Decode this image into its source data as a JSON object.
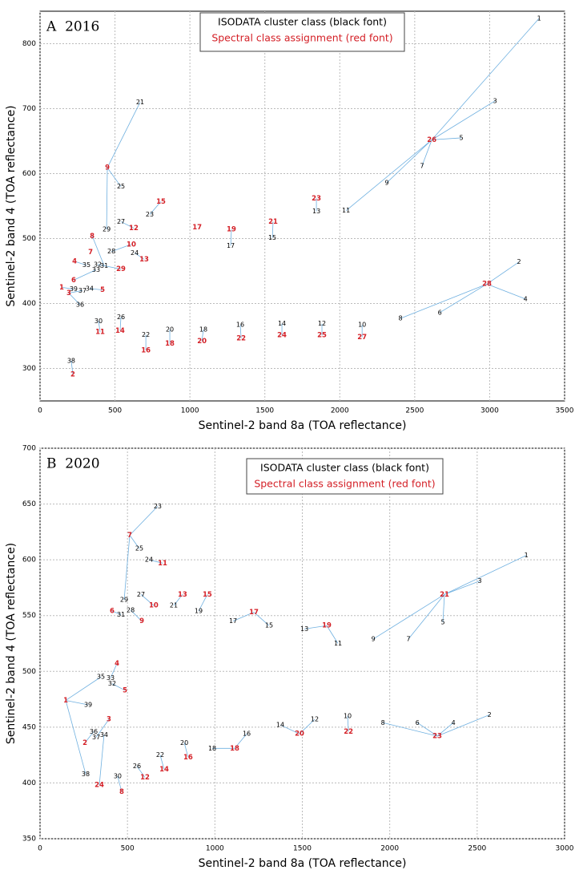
{
  "chart_data": [
    {
      "type": "scatter",
      "title": "A  2016",
      "x_label": "Sentinel-2 band 8a (TOA reflectance)",
      "y_label": "Sentinel-2 band 4 (TOA reflectance)",
      "xlim": [
        0,
        3500
      ],
      "ylim": [
        250,
        850
      ],
      "xticks": [
        0,
        500,
        1000,
        1500,
        2000,
        2500,
        3000,
        3500
      ],
      "yticks": [
        300,
        400,
        500,
        600,
        700,
        800
      ],
      "grid": true,
      "series": [
        {
          "name": "ISODATA cluster class (black font)",
          "color": "#000000",
          "labels": [
            "1",
            "2",
            "3",
            "4",
            "5",
            "6",
            "7",
            "8",
            "9",
            "10",
            "11",
            "12",
            "13",
            "14",
            "15",
            "16",
            "17",
            "18",
            "20",
            "21",
            "22",
            "23",
            "24",
            "25",
            "26",
            "27",
            "28",
            "29",
            "30",
            "31",
            "32",
            "33",
            "34",
            "35",
            "36",
            "37",
            "38",
            "39"
          ],
          "x": [
            3330,
            3196,
            3036,
            3239,
            2811,
            2667,
            2549,
            2405,
            2314,
            2149,
            2042,
            1881,
            1844,
            1614,
            1550,
            1336,
            1272,
            1090,
            866,
            668,
            706,
            732,
            631,
            540,
            540,
            540,
            476,
            444,
            390,
            428,
            385,
            374,
            331,
            310,
            267,
            283,
            208,
            224
          ],
          "y": [
            839,
            464,
            712,
            407,
            655,
            386,
            612,
            377,
            586,
            367,
            543,
            369,
            542,
            369,
            501,
            367,
            489,
            360,
            360,
            710,
            352,
            537,
            478,
            580,
            379,
            526,
            480,
            514,
            373,
            458,
            460,
            452,
            423,
            459,
            398,
            420,
            312,
            422
          ],
          "classes": [
            "26",
            "28",
            "26",
            "28",
            "26",
            "28",
            "26",
            "28",
            "26",
            "27",
            "26",
            "25",
            "23",
            "24",
            "21",
            "22",
            "19",
            "20",
            "18",
            "9",
            "16",
            "15",
            "13",
            "9",
            "14",
            "12",
            "10",
            "9",
            "11",
            "8",
            "29",
            "6",
            "5",
            "4",
            "3",
            "3",
            "2",
            "1"
          ]
        },
        {
          "name": "Spectral class assignment (red font)",
          "color": "#d42027",
          "labels": [
            "1",
            "2",
            "3",
            "4",
            "5",
            "6",
            "7",
            "8",
            "9",
            "10",
            "11",
            "12",
            "13",
            "14",
            "15",
            "16",
            "17",
            "18",
            "19",
            "20",
            "21",
            "22",
            "23",
            "24",
            "25",
            "26",
            "27",
            "28",
            "29"
          ],
          "x": [
            144,
            219,
            192,
            230,
            417,
            224,
            337,
            348,
            449,
            609,
            401,
            625,
            695,
            534,
            807,
            706,
            1048,
            866,
            1277,
            1080,
            1555,
            1342,
            1844,
            1614,
            1881,
            2614,
            2149,
            2982,
            540
          ],
          "y": [
            425,
            291,
            416,
            465,
            421,
            436,
            479,
            504,
            609,
            491,
            356,
            516,
            468,
            358,
            557,
            328,
            517,
            338,
            514,
            342,
            526,
            346,
            562,
            351,
            351,
            652,
            348,
            430,
            453
          ]
        }
      ]
    },
    {
      "type": "scatter",
      "title": "B  2020",
      "x_label": "Sentinel-2 band 8a (TOA reflectance)",
      "y_label": "Sentinel-2 band 4 (TOA reflectance)",
      "xlim": [
        0,
        3000
      ],
      "ylim": [
        350,
        700
      ],
      "xticks": [
        0,
        500,
        1000,
        1500,
        2000,
        2500,
        3000
      ],
      "yticks": [
        350,
        400,
        450,
        500,
        550,
        600,
        650,
        700
      ],
      "grid": true,
      "series": [
        {
          "name": "ISODATA cluster class (black font)",
          "color": "#000000",
          "labels": [
            "1",
            "2",
            "3",
            "4",
            "5",
            "6",
            "7",
            "8",
            "9",
            "10",
            "11",
            "12",
            "13",
            "14",
            "15",
            "16",
            "17",
            "18",
            "19",
            "20",
            "21",
            "22",
            "23",
            "24",
            "25",
            "26",
            "27",
            "28",
            "29",
            "30",
            "31",
            "32",
            "33",
            "34",
            "35",
            "36",
            "37",
            "38",
            "39"
          ],
          "x": [
            2781,
            2570,
            2515,
            2364,
            2304,
            2158,
            2107,
            1961,
            1906,
            1759,
            1704,
            1571,
            1512,
            1374,
            1310,
            1182,
            1104,
            985,
            907,
            825,
            765,
            687,
            673,
            623,
            568,
            554,
            577,
            518,
            481,
            444,
            463,
            412,
            403,
            366,
            348,
            307,
            321,
            261,
            275
          ],
          "y": [
            604,
            461,
            581,
            454,
            544,
            454,
            529,
            454,
            529,
            460,
            525,
            457,
            538,
            452,
            541,
            444,
            545,
            431,
            554,
            436,
            559,
            425,
            648,
            600,
            610,
            415,
            569,
            555,
            564,
            406,
            551,
            489,
            494,
            443,
            495,
            446,
            441,
            408,
            470
          ],
          "classes": [
            "21",
            "23",
            "21",
            "23",
            "21",
            "23",
            "21",
            "23",
            "21",
            "22",
            "19",
            "20",
            "19",
            "20",
            "17",
            "18",
            "17",
            "18",
            "15",
            "16",
            "13",
            "14",
            "7",
            "11",
            "7",
            "12",
            "10",
            "9",
            "7",
            "8",
            "6",
            "5",
            "4",
            "24",
            "1",
            "2",
            "3",
            "1",
            "1"
          ]
        },
        {
          "name": "Spectral class assignment (red font)",
          "color": "#d42027",
          "labels": [
            "1",
            "2",
            "3",
            "4",
            "5",
            "6",
            "7",
            "8",
            "9",
            "10",
            "11",
            "12",
            "13",
            "14",
            "15",
            "16",
            "17",
            "18",
            "19",
            "20",
            "21",
            "22",
            "23",
            "24"
          ],
          "x": [
            147,
            257,
            394,
            440,
            486,
            412,
            513,
            467,
            582,
            650,
            701,
            600,
            815,
            710,
            957,
            847,
            1223,
            1113,
            1640,
            1484,
            2313,
            1764,
            2272,
            339
          ],
          "y": [
            474,
            436,
            457,
            507,
            483,
            554,
            622,
            392,
            545,
            559,
            597,
            405,
            569,
            412,
            569,
            423,
            553,
            431,
            541,
            444,
            569,
            446,
            442,
            398
          ]
        }
      ]
    }
  ]
}
